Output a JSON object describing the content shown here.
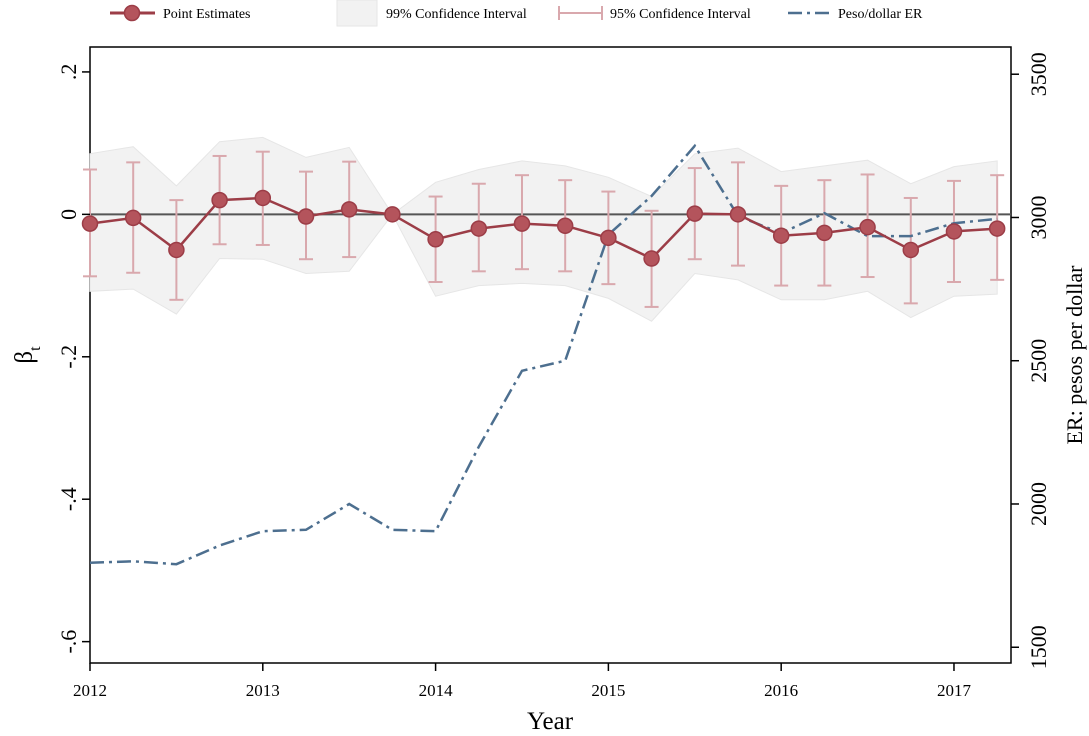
{
  "chart_data": {
    "type": "line",
    "title": "",
    "xlabel": "Year",
    "ylabel": "β",
    "ylabel_subscript": "t",
    "y2label": "ER: pesos per dollar",
    "xlim": [
      2012,
      2017.33
    ],
    "ylim": [
      -0.63,
      0.235
    ],
    "y2lim": [
      1445,
      3595
    ],
    "x_ticks": [
      2012,
      2013,
      2014,
      2015,
      2016,
      2017
    ],
    "x_tick_labels": [
      "2012",
      "2013",
      "2014",
      "2015",
      "2016",
      "2017"
    ],
    "y_ticks": [
      0.2,
      0,
      -0.2,
      -0.4,
      -0.6
    ],
    "y_tick_labels": [
      ".2",
      "0",
      "-.2",
      "-.4",
      "-.6"
    ],
    "y2_ticks": [
      3500,
      3000,
      2500,
      2000,
      1500
    ],
    "y2_tick_labels": [
      "3500",
      "3000",
      "2500",
      "2000",
      "1500"
    ],
    "x": [
      2012,
      2012.25,
      2012.5,
      2012.75,
      2013,
      2013.25,
      2013.5,
      2013.75,
      2014,
      2014.25,
      2014.5,
      2014.75,
      2015,
      2015.25,
      2015.5,
      2015.75,
      2016,
      2016.25,
      2016.5,
      2016.75,
      2017,
      2017.25
    ],
    "legend_position": "top",
    "colors": {
      "point": "#9c3d47",
      "point_fill": "#b4545c",
      "ci95": "#d9a8ad",
      "ci99": "#f2f2f2",
      "ci99_edge": "#e6e6e6",
      "er": "#4d6f8f",
      "zero_line": "#555555"
    },
    "series": [
      {
        "name": "Point Estimates",
        "values": [
          -0.013,
          -0.005,
          -0.05,
          0.02,
          0.023,
          -0.003,
          0.007,
          0.0,
          -0.035,
          -0.02,
          -0.013,
          -0.016,
          -0.033,
          -0.062,
          0.001,
          0.0,
          -0.03,
          -0.026,
          -0.018,
          -0.05,
          -0.024,
          -0.02
        ]
      },
      {
        "name": "95% Confidence Interval",
        "lower": [
          -0.087,
          -0.082,
          -0.12,
          -0.042,
          -0.043,
          -0.063,
          -0.06,
          0.0,
          -0.095,
          -0.08,
          -0.077,
          -0.08,
          -0.098,
          -0.13,
          -0.063,
          -0.072,
          -0.1,
          -0.1,
          -0.088,
          -0.125,
          -0.095,
          -0.092
        ],
        "upper": [
          0.063,
          0.073,
          0.02,
          0.082,
          0.088,
          0.06,
          0.074,
          0.0,
          0.025,
          0.043,
          0.055,
          0.048,
          0.032,
          0.005,
          0.065,
          0.073,
          0.04,
          0.048,
          0.056,
          0.023,
          0.047,
          0.055
        ]
      },
      {
        "name": "99% Confidence Interval",
        "lower": [
          -0.108,
          -0.105,
          -0.14,
          -0.062,
          -0.063,
          -0.083,
          -0.08,
          0.0,
          -0.115,
          -0.1,
          -0.097,
          -0.1,
          -0.118,
          -0.15,
          -0.083,
          -0.092,
          -0.12,
          -0.12,
          -0.108,
          -0.145,
          -0.115,
          -0.112
        ],
        "upper": [
          0.085,
          0.095,
          0.04,
          0.102,
          0.108,
          0.08,
          0.094,
          0.0,
          0.045,
          0.063,
          0.075,
          0.068,
          0.052,
          0.025,
          0.085,
          0.093,
          0.06,
          0.068,
          0.076,
          0.043,
          0.067,
          0.075
        ]
      },
      {
        "name": "Peso/dollar ER",
        "axis": "right",
        "values": [
          1795,
          1800,
          1790,
          1855,
          1905,
          1910,
          2000,
          1910,
          1905,
          2200,
          2465,
          2500,
          2940,
          3075,
          3250,
          3005,
          2945,
          3015,
          2935,
          2935,
          2980,
          2995
        ]
      }
    ]
  }
}
